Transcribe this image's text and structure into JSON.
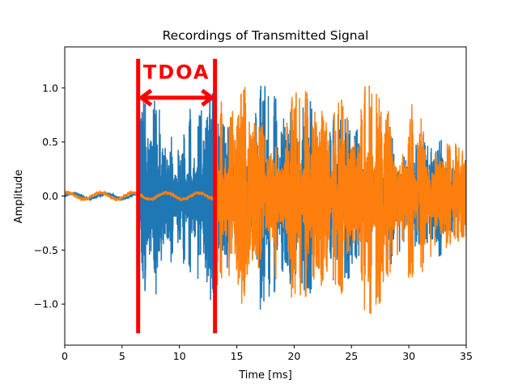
{
  "chart_data": {
    "type": "line",
    "title": "Recordings of Transmitted Signal",
    "xlabel": "Time [ms]",
    "ylabel": "Amplitude",
    "xlim": [
      0,
      35
    ],
    "ylim": [
      -1.38,
      1.38
    ],
    "xticks": [
      0,
      5,
      10,
      15,
      20,
      25,
      30,
      35
    ],
    "yticks": [
      -1.0,
      -0.5,
      0.0,
      0.5,
      1.0
    ],
    "ytick_labels": [
      "−1.0",
      "−0.5",
      "0.0",
      "0.5",
      "1.0"
    ],
    "grid": false,
    "series": [
      {
        "color": "#1f77b4",
        "quiet_start": 0,
        "onset": 6.5,
        "end": 35,
        "envelope": [
          [
            0,
            0.04
          ],
          [
            6.4,
            0.04
          ],
          [
            6.5,
            0.9
          ],
          [
            7.5,
            0.95
          ],
          [
            9.0,
            0.85
          ],
          [
            10.5,
            0.7
          ],
          [
            11.5,
            0.95
          ],
          [
            13.0,
            0.9
          ],
          [
            15.0,
            0.9
          ],
          [
            17.0,
            1.0
          ],
          [
            19.0,
            0.85
          ],
          [
            21.0,
            1.0
          ],
          [
            23.0,
            0.75
          ],
          [
            25.0,
            0.8
          ],
          [
            27.0,
            0.7
          ],
          [
            29.0,
            0.65
          ],
          [
            31.0,
            0.6
          ],
          [
            33.0,
            0.5
          ],
          [
            35.0,
            0.45
          ]
        ]
      },
      {
        "color": "#ff7f0e",
        "quiet_start": 0,
        "onset": 13.2,
        "end": 35,
        "envelope": [
          [
            0,
            0.05
          ],
          [
            13.1,
            0.05
          ],
          [
            13.2,
            0.85
          ],
          [
            15.0,
            0.95
          ],
          [
            17.0,
            0.9
          ],
          [
            19.0,
            0.85
          ],
          [
            21.0,
            0.95
          ],
          [
            23.0,
            0.9
          ],
          [
            25.0,
            1.0
          ],
          [
            27.0,
            1.05
          ],
          [
            29.0,
            0.95
          ],
          [
            31.0,
            0.75
          ],
          [
            33.0,
            0.65
          ],
          [
            35.0,
            0.5
          ]
        ]
      }
    ],
    "annotations": {
      "text": "TDOA",
      "color": "#ff0000",
      "line1_x": 6.4,
      "line2_x": 13.1,
      "line_y_range": [
        -1.27,
        1.27
      ],
      "arrow_y": 0.91
    }
  }
}
